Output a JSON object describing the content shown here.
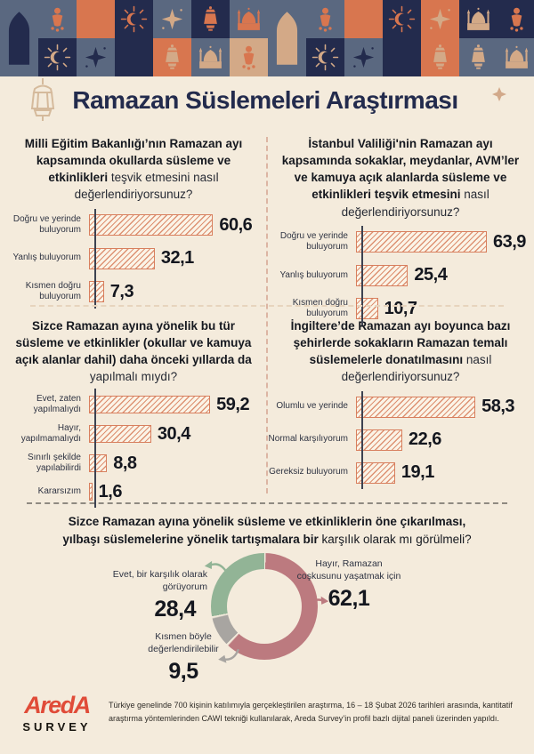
{
  "colors": {
    "cream": "#f4ebdc",
    "navy": "#232b4d",
    "slate": "#5a6880",
    "orange": "#d8764f",
    "tan": "#d3a987",
    "salmon": "#d87f5e",
    "salmonline": "#dd9172",
    "barfill": "#fbf4e7",
    "pink": "#bc7a7f",
    "green": "#92b496",
    "gray": "#a8a5a1",
    "red": "#e04b38"
  },
  "pattern_tiles": [
    {
      "motif": "arch",
      "bg": "slate",
      "fill": "navy",
      "span": 2
    },
    {
      "motif": "ornament",
      "bg": "slate",
      "fill": "orange"
    },
    {
      "motif": "sunburst",
      "bg": "navy",
      "fill": "tan"
    },
    {
      "motif": "crescent",
      "bg": "orange",
      "fill": "tan"
    },
    {
      "motif": "star4",
      "bg": "slate",
      "fill": "navy"
    },
    {
      "motif": "sunburst",
      "bg": "navy",
      "fill": "orange"
    },
    {
      "motif": "crescent",
      "bg": "navy",
      "fill": "tan"
    },
    {
      "motif": "star4",
      "bg": "slate",
      "fill": "tan"
    },
    {
      "motif": "lantern",
      "bg": "orange",
      "fill": "tan"
    },
    {
      "motif": "lantern",
      "bg": "navy",
      "fill": "orange"
    },
    {
      "motif": "mosque",
      "bg": "slate",
      "fill": "tan"
    },
    {
      "motif": "mosque",
      "bg": "slate",
      "fill": "orange"
    },
    {
      "motif": "ornament",
      "bg": "tan",
      "fill": "orange"
    },
    {
      "motif": "arch",
      "bg": "slate",
      "fill": "tan",
      "span": 2
    },
    {
      "motif": "ornament",
      "bg": "slate",
      "fill": "orange"
    },
    {
      "motif": "sunburst",
      "bg": "navy",
      "fill": "tan"
    },
    {
      "motif": "crescent",
      "bg": "orange",
      "fill": "tan"
    },
    {
      "motif": "star4",
      "bg": "slate",
      "fill": "navy"
    },
    {
      "motif": "sunburst",
      "bg": "navy",
      "fill": "orange"
    },
    {
      "motif": "crescent",
      "bg": "navy",
      "fill": "tan"
    },
    {
      "motif": "star4",
      "bg": "orange",
      "fill": "tan"
    },
    {
      "motif": "lantern",
      "bg": "orange",
      "fill": "tan"
    },
    {
      "motif": "mosque",
      "bg": "navy",
      "fill": "tan"
    },
    {
      "motif": "lantern",
      "bg": "slate",
      "fill": "tan"
    },
    {
      "motif": "ornament",
      "bg": "navy",
      "fill": "orange"
    },
    {
      "motif": "mosque",
      "bg": "slate",
      "fill": "tan"
    }
  ],
  "header": {
    "title": "Ramazan Süslemeleri Araştırması"
  },
  "chart_data": [
    {
      "id": "meb",
      "type": "bar",
      "orientation": "horizontal",
      "title_bold": "Milli Eğitim Bakanlığı’nın Ramazan ayı kapsamında okullarda süsleme ve etkinlikleri",
      "title_rest": " teşvik etmesini nasıl değerlendiriyorsunuz?",
      "categories": [
        "Doğru ve yerinde buluyorum",
        "Yanlış buluyorum",
        "Kısmen doğru buluyorum"
      ],
      "values": [
        60.6,
        32.1,
        7.3
      ],
      "value_labels": [
        "60,6",
        "32,1",
        "7,3"
      ],
      "xlim": [
        0,
        70
      ],
      "grid": false,
      "legend_position": "none"
    },
    {
      "id": "istanbul",
      "type": "bar",
      "orientation": "horizontal",
      "title_bold": "İstanbul Valiliği'nin Ramazan ayı kapsamında sokaklar, meydanlar, AVM’ler ve kamuya açık alanlarda süsleme ve etkinlikleri teşvik etmesini",
      "title_rest": " nasıl değerlendiriyorsunuz?",
      "categories": [
        "Doğru ve yerinde buluyorum",
        "Yanlış buluyorum",
        "Kısmen doğru buluyorum"
      ],
      "values": [
        63.9,
        25.4,
        10.7
      ],
      "value_labels": [
        "63,9",
        "25,4",
        "10,7"
      ],
      "xlim": [
        0,
        70
      ],
      "grid": false,
      "legend_position": "none"
    },
    {
      "id": "onceki-yillar",
      "type": "bar",
      "orientation": "horizontal",
      "title_bold": "Sizce Ramazan ayına yönelik bu tür süsleme ve etkinlikler (okullar ve kamuya açık alanlar dahil) daha önceki yıllarda da",
      "title_rest": " yapılmalı mıydı?",
      "categories": [
        "Evet, zaten yapılmalıydı",
        "Hayır, yapılmamalıydı",
        "Sınırlı şekilde yapılabilirdi",
        "Kararsızım"
      ],
      "values": [
        59.2,
        30.4,
        8.8,
        1.6
      ],
      "value_labels": [
        "59,2",
        "30,4",
        "8,8",
        "1,6"
      ],
      "xlim": [
        0,
        70
      ],
      "grid": false,
      "legend_position": "none"
    },
    {
      "id": "ingiltere",
      "type": "bar",
      "orientation": "horizontal",
      "title_bold": "İngiltere’de Ramazan ayı boyunca bazı şehirlerde sokakların Ramazan temalı süslemelerle donatılmasını",
      "title_rest": " nasıl değerlendiriyorsunuz?",
      "categories": [
        "Olumlu ve yerinde",
        "Normal karşılıyorum",
        "Gereksiz buluyorum"
      ],
      "values": [
        58.3,
        22.6,
        19.1
      ],
      "value_labels": [
        "58,3",
        "22,6",
        "19,1"
      ],
      "xlim": [
        0,
        70
      ],
      "grid": false,
      "legend_position": "none"
    },
    {
      "id": "yilbasi-karsilik",
      "type": "pie",
      "subtype": "donut",
      "title_bold": "Sizce Ramazan ayına yönelik süsleme ve etkinliklerin öne çıkarılması, yılbaşı süslemelerine yönelik tartışmalara bir",
      "title_rest": " karşılık olarak mı görülmeli?",
      "labels": [
        "Hayır, Ramazan coşkusunu yaşatmak için",
        "Kısmen böyle değerlendirilebilir",
        "Evet, bir karşılık olarak görüyorum"
      ],
      "values": [
        62.1,
        9.5,
        28.4
      ],
      "value_labels": [
        "62,1",
        "9,5",
        "28,4"
      ],
      "colors": [
        "#bc7a7f",
        "#a8a5a1",
        "#92b496"
      ],
      "start_angle_deg": 0,
      "legend_position": "none"
    }
  ],
  "footer": {
    "logo_line1": "AredA",
    "logo_line2": "SURVEY",
    "text": "Türkiye genelinde 700 kişinin katılımıyla gerçekleştirilen araştırma, 16 – 18 Şubat 2026 tarihleri arasında, kantitatif araştırma yöntemlerinden CAWI tekniği kullanılarak, Areda Survey’in profil bazlı dijital paneli üzerinden yapıldı."
  }
}
